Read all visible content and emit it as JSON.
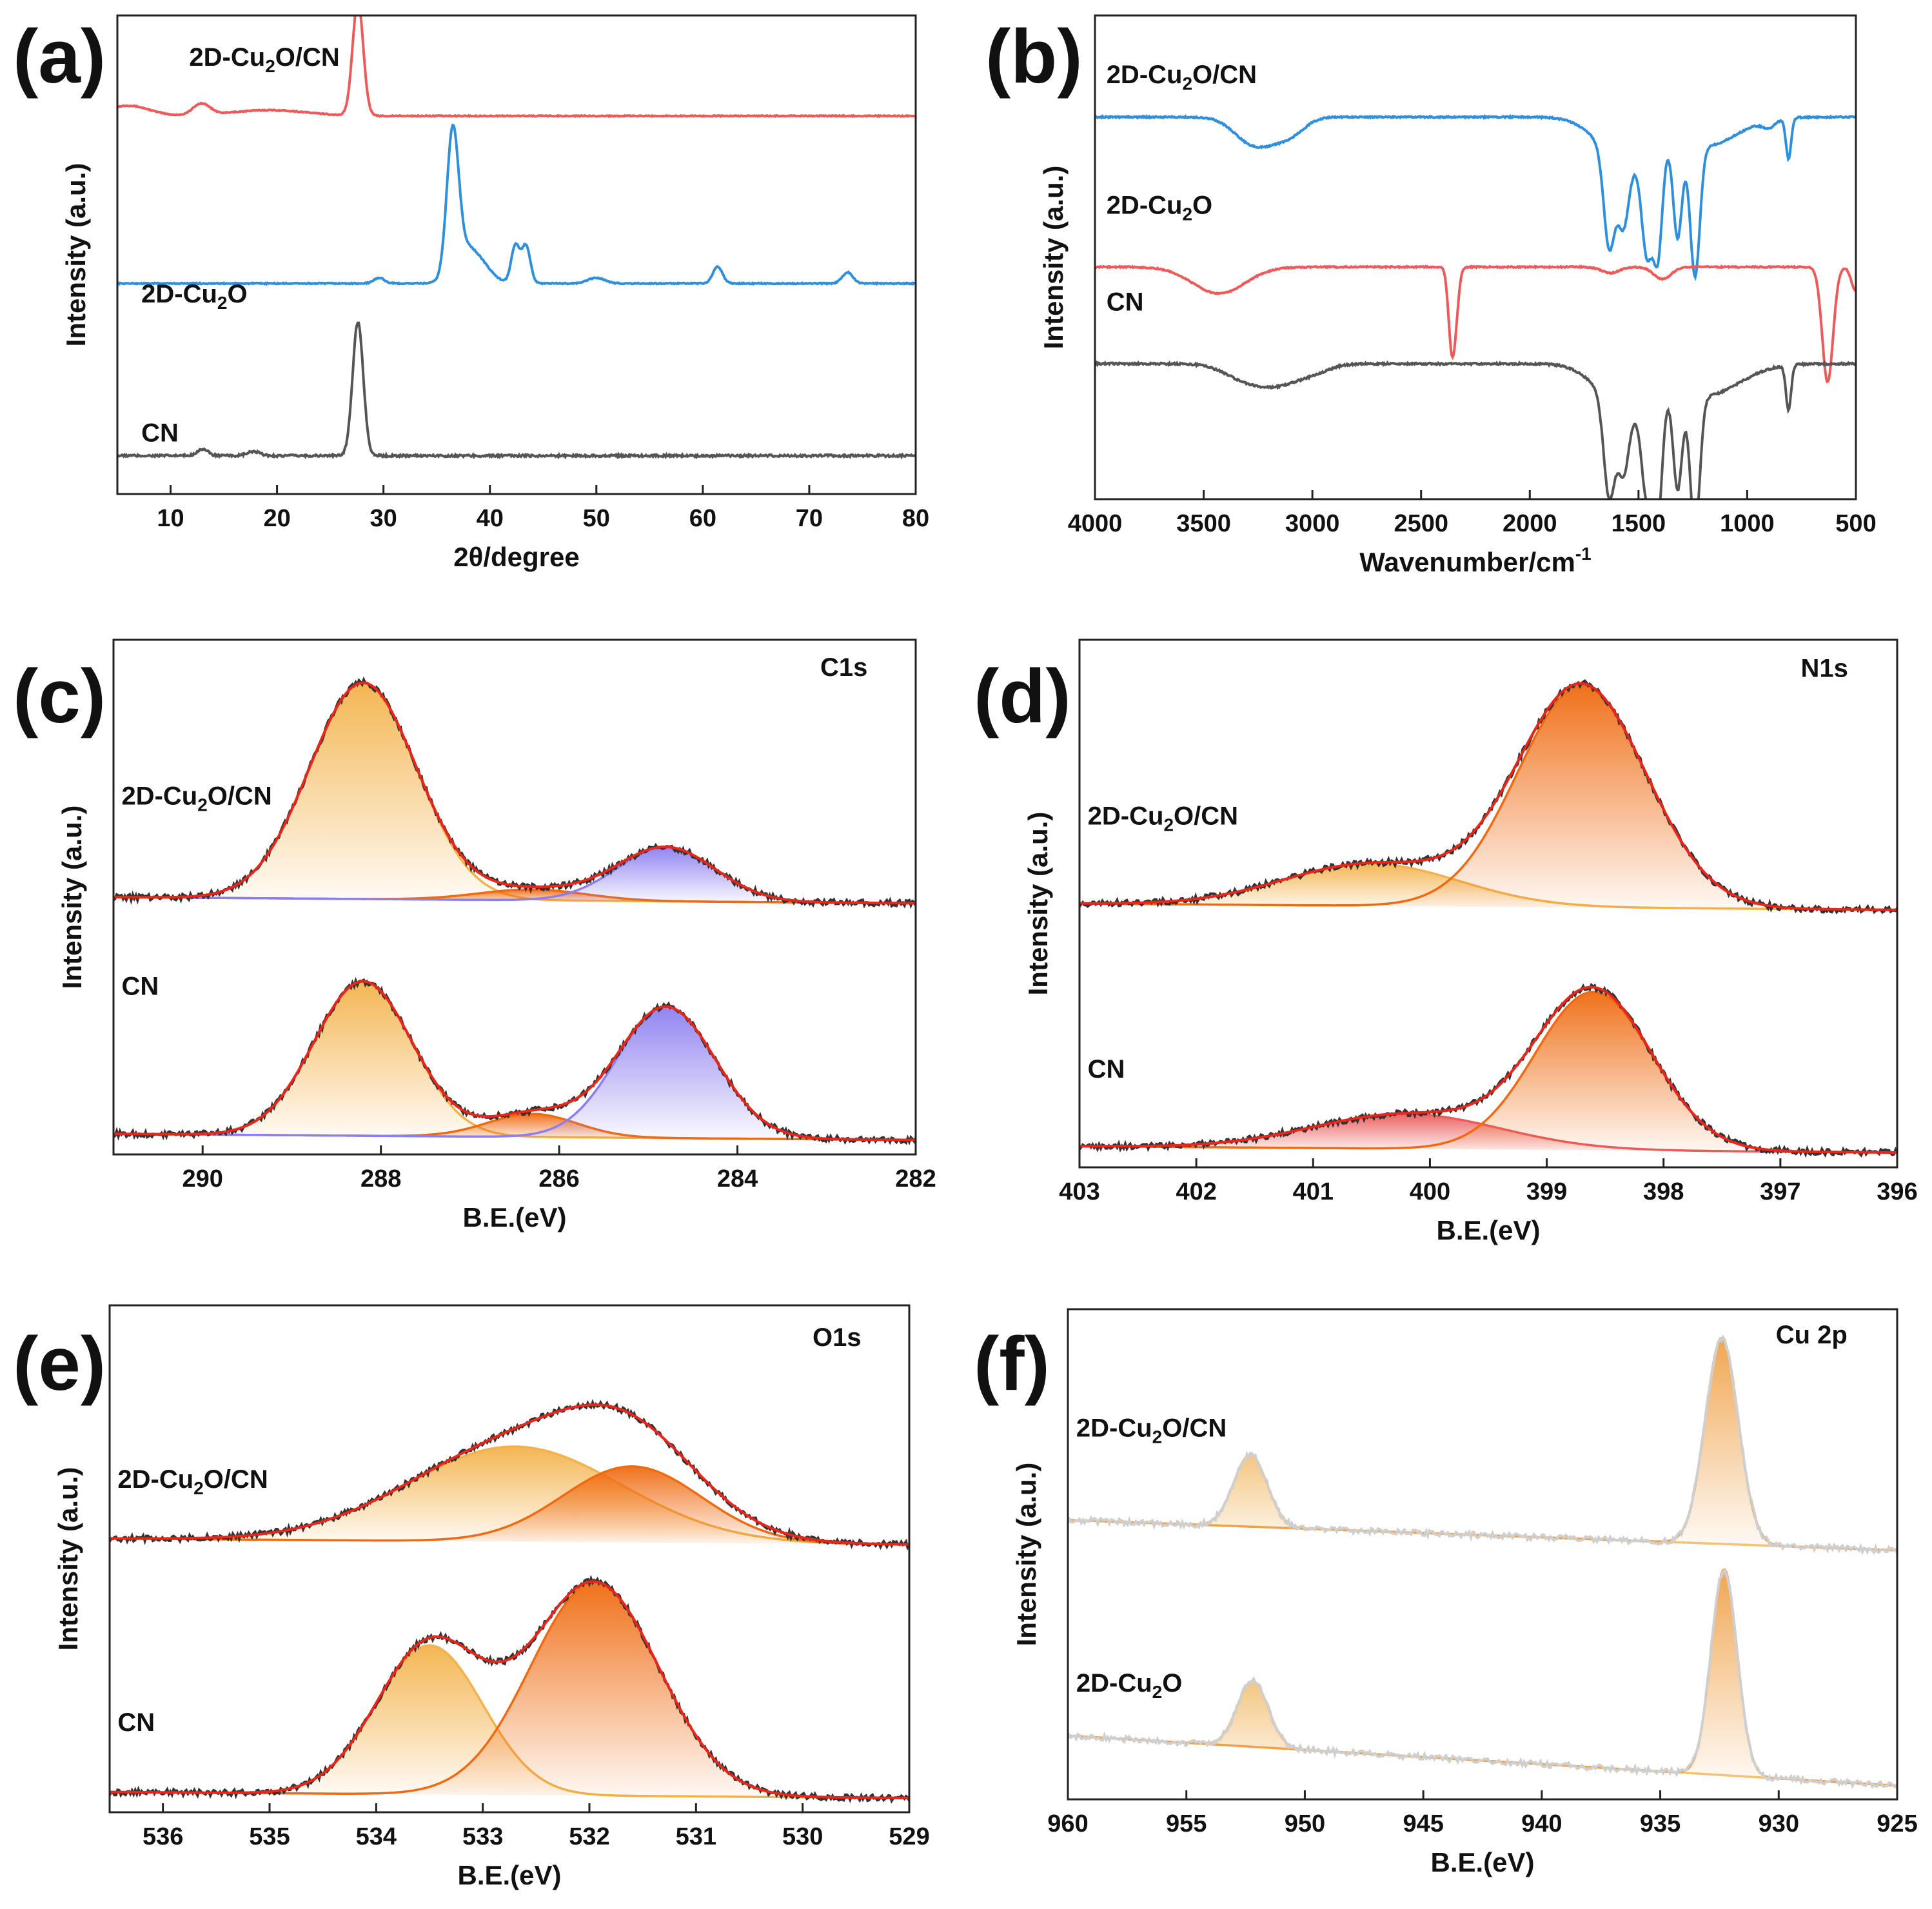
{
  "colors": {
    "red": "#ec5a5a",
    "blue": "#2f8fdc",
    "gray": "#555555",
    "orange_light": "#f3b24a",
    "orange_dark": "#ef6a10",
    "purple": "#8c7ef0",
    "fit_red": "#e8261a"
  },
  "chart_data": [
    {
      "id": "a",
      "letter": "(a)",
      "type": "line",
      "xlabel": "2θ/degree",
      "ylabel": "Intensity (a.u.)",
      "xlim": [
        5,
        80
      ],
      "xticks": [
        10,
        20,
        30,
        40,
        50,
        60,
        70,
        80
      ],
      "tick_labels": [
        "10",
        "20",
        "30",
        "40",
        "50",
        "60",
        "70",
        "80"
      ],
      "series": [
        {
          "name": "2D-Cu2O/CN",
          "label_main": "2D-Cu",
          "label_sub": "2",
          "label_rest": "O/CN",
          "color": "#ec5a5a",
          "offset": 0.79,
          "scale": 0.24,
          "baseline": 0.0,
          "noise": 0.004,
          "peaks": [
            [
              27.6,
              1.0,
              0.5
            ],
            [
              12.9,
              0.1,
              0.8
            ],
            [
              6.0,
              0.09,
              2.0
            ],
            [
              17.5,
              0.03,
              3.0
            ],
            [
              21.0,
              0.03,
              3.0
            ]
          ]
        },
        {
          "name": "2D-Cu2O",
          "label_main": "2D-Cu",
          "label_sub": "2",
          "label_rest": "O",
          "color": "#2f8fdc",
          "offset": 0.44,
          "scale": 0.29,
          "baseline": 0.0,
          "noise": 0.004,
          "peaks": [
            [
              36.5,
              1.0,
              0.55
            ],
            [
              37.8,
              0.25,
              1.2
            ],
            [
              42.4,
              0.27,
              0.4
            ],
            [
              43.4,
              0.27,
              0.4
            ],
            [
              61.4,
              0.12,
              0.45
            ],
            [
              73.6,
              0.08,
              0.5
            ],
            [
              29.6,
              0.04,
              0.5
            ],
            [
              50.0,
              0.04,
              0.8
            ],
            [
              39.6,
              0.06,
              1.0
            ]
          ]
        },
        {
          "name": "CN",
          "label_main": "CN",
          "label_sub": "",
          "label_rest": "",
          "color": "#555555",
          "offset": 0.08,
          "scale": 0.28,
          "baseline": 0.0,
          "noise": 0.008,
          "peaks": [
            [
              27.6,
              1.0,
              0.5
            ],
            [
              13.0,
              0.05,
              0.5
            ],
            [
              17.8,
              0.03,
              0.6
            ]
          ]
        }
      ]
    },
    {
      "id": "b",
      "letter": "(b)",
      "type": "line",
      "xlabel": "Wavenumber/cm",
      "xlabel_sup": "-1",
      "ylabel": "Intensity (a.u.)",
      "xlim": [
        4000,
        500
      ],
      "xticks": [
        4000,
        3500,
        3000,
        2500,
        2000,
        1500,
        1000,
        500
      ],
      "tick_labels": [
        "4000",
        "3500",
        "3000",
        "2500",
        "2000",
        "1500",
        "1000",
        "500"
      ],
      "series": [
        {
          "name": "2D-Cu2O/CN",
          "label_main": "2D-Cu",
          "label_sub": "2",
          "label_rest": "O/CN",
          "color": "#2f8fdc",
          "offset": 0.79,
          "scale": 0.3,
          "baseline": 0.0,
          "noise": 0.005,
          "sign": -1,
          "peaks": [
            [
              3290,
              0.15,
              80
            ],
            [
              3170,
              0.12,
              80
            ],
            [
              3080,
              0.06,
              60
            ],
            [
              1635,
              0.65,
              25
            ],
            [
              1570,
              0.45,
              25
            ],
            [
              1460,
              0.7,
              25
            ],
            [
              1410,
              0.7,
              20
            ],
            [
              1320,
              0.65,
              20
            ],
            [
              1240,
              0.9,
              22
            ],
            [
              1560,
              0.3,
              120
            ],
            [
              1200,
              0.2,
              150
            ],
            [
              810,
              0.28,
              12
            ],
            [
              900,
              0.05,
              30
            ]
          ]
        },
        {
          "name": "2D-Cu2O",
          "label_main": "2D-Cu",
          "label_sub": "2",
          "label_rest": "O",
          "color": "#ec5a5a",
          "offset": 0.48,
          "scale": 0.25,
          "baseline": 0.0,
          "noise": 0.005,
          "sign": -1,
          "peaks": [
            [
              3430,
              0.22,
              120
            ],
            [
              2360,
              0.6,
              15
            ],
            [
              2340,
              0.3,
              15
            ],
            [
              1630,
              0.05,
              40
            ],
            [
              1390,
              0.1,
              40
            ],
            [
              630,
              0.95,
              25
            ],
            [
              500,
              0.2,
              20
            ]
          ]
        },
        {
          "name": "CN",
          "label_main": "CN",
          "label_sub": "",
          "label_rest": "",
          "color": "#555555",
          "offset": 0.28,
          "scale": 0.33,
          "baseline": 0.0,
          "noise": 0.006,
          "sign": -1,
          "peaks": [
            [
              3300,
              0.1,
              100
            ],
            [
              3150,
              0.1,
              90
            ],
            [
              3000,
              0.05,
              80
            ],
            [
              1635,
              0.6,
              25
            ],
            [
              1570,
              0.4,
              25
            ],
            [
              1460,
              0.6,
              25
            ],
            [
              1410,
              0.7,
              20
            ],
            [
              1320,
              0.6,
              20
            ],
            [
              1240,
              0.85,
              22
            ],
            [
              1560,
              0.28,
              120
            ],
            [
              1200,
              0.2,
              160
            ],
            [
              810,
              0.28,
              12
            ]
          ]
        }
      ]
    },
    {
      "id": "c",
      "letter": "(c)",
      "type": "xps",
      "core": "C1s",
      "xlabel": "B.E.(eV)",
      "ylabel": "Intensity (a.u.)",
      "xlim": [
        291,
        282
      ],
      "xticks": [
        290,
        288,
        286,
        284,
        282
      ],
      "tick_labels": [
        "290",
        "288",
        "286",
        "284",
        "282"
      ],
      "series": [
        {
          "name": "2D-Cu2O/CN",
          "label_main": "2D-Cu",
          "label_sub": "2",
          "label_rest": "O/CN",
          "offset": 0.5,
          "scale": 0.42,
          "components": [
            [
              288.2,
              1.0,
              0.6,
              "#f3b24a"
            ],
            [
              286.3,
              0.05,
              0.6,
              "#ef6a10"
            ],
            [
              284.8,
              0.25,
              0.55,
              "#8c7ef0"
            ]
          ]
        },
        {
          "name": "CN",
          "label_main": "CN",
          "label_sub": "",
          "label_rest": "",
          "offset": 0.04,
          "scale": 0.3,
          "components": [
            [
              288.2,
              1.0,
              0.55,
              "#f3b24a"
            ],
            [
              286.3,
              0.15,
              0.5,
              "#ef6a10"
            ],
            [
              284.8,
              0.85,
              0.55,
              "#8c7ef0"
            ]
          ]
        }
      ]
    },
    {
      "id": "d",
      "letter": "(d)",
      "type": "xps",
      "core": "N1s",
      "xlabel": "B.E.(eV)",
      "ylabel": "Intensity (a.u.)",
      "xlim": [
        403,
        396
      ],
      "xticks": [
        403,
        402,
        401,
        400,
        399,
        398,
        397,
        396
      ],
      "tick_labels": [
        "403",
        "402",
        "401",
        "400",
        "399",
        "398",
        "397",
        "396"
      ],
      "series": [
        {
          "name": "2D-Cu2O/CN",
          "label_main": "2D-Cu",
          "label_sub": "2",
          "label_rest": "O/CN",
          "offset": 0.5,
          "scale": 0.42,
          "components": [
            [
              400.5,
              0.19,
              0.75,
              "#f3b24a"
            ],
            [
              398.7,
              1.0,
              0.55,
              "#ef6a10"
            ]
          ]
        },
        {
          "name": "CN",
          "label_main": "CN",
          "label_sub": "",
          "label_rest": "",
          "offset": 0.04,
          "scale": 0.3,
          "components": [
            [
              400.2,
              0.22,
              0.8,
              "#ec5a5a"
            ],
            [
              398.6,
              1.0,
              0.5,
              "#ef6a10"
            ]
          ]
        }
      ]
    },
    {
      "id": "e",
      "letter": "(e)",
      "type": "xps",
      "core": "O1s",
      "xlabel": "B.E.(eV)",
      "ylabel": "Intensity (a.u.)",
      "xlim": [
        536.5,
        529
      ],
      "xticks": [
        536,
        535,
        534,
        533,
        532,
        531,
        530,
        529
      ],
      "tick_labels": [
        "536",
        "535",
        "534",
        "533",
        "532",
        "531",
        "530",
        "529"
      ],
      "series": [
        {
          "name": "2D-Cu2O/CN",
          "label_main": "2D-Cu",
          "label_sub": "2",
          "label_rest": "O/CN",
          "offset": 0.54,
          "scale": 0.25,
          "components": [
            [
              532.7,
              0.75,
              1.0,
              "#f3b24a"
            ],
            [
              531.6,
              0.6,
              0.65,
              "#ef6a10"
            ]
          ]
        },
        {
          "name": "CN",
          "label_main": "CN",
          "label_sub": "",
          "label_rest": "",
          "offset": 0.04,
          "scale": 0.42,
          "components": [
            [
              533.5,
              0.7,
              0.5,
              "#f3b24a"
            ],
            [
              531.95,
              1.0,
              0.6,
              "#ef6a10"
            ]
          ]
        }
      ]
    },
    {
      "id": "f",
      "letter": "(f)",
      "type": "xps",
      "core": "Cu 2p",
      "xlabel": "B.E.(eV)",
      "ylabel": "Intensity (a.u.)",
      "xlim": [
        960,
        925
      ],
      "xticks": [
        960,
        955,
        950,
        945,
        940,
        935,
        930,
        925
      ],
      "tick_labels": [
        "960",
        "955",
        "950",
        "945",
        "940",
        "935",
        "930",
        "925"
      ],
      "series": [
        {
          "name": "2D-Cu2O/CN",
          "label_main": "2D-Cu",
          "label_sub": "2",
          "label_rest": "O/CN",
          "offset": 0.52,
          "scale": 0.42,
          "tilt": 0.05,
          "components": [
            [
              952.3,
              0.35,
              0.7,
              "#f3c37a"
            ],
            [
              932.4,
              1.0,
              0.7,
              "#efa24a"
            ]
          ]
        },
        {
          "name": "2D-Cu2O",
          "label_main": "2D-Cu",
          "label_sub": "2",
          "label_rest": "O",
          "offset": 0.04,
          "scale": 0.42,
          "tilt": 0.09,
          "components": [
            [
              952.2,
              0.32,
              0.65,
              "#f3c37a"
            ],
            [
              932.3,
              1.0,
              0.55,
              "#efa24a"
            ]
          ]
        }
      ]
    }
  ]
}
